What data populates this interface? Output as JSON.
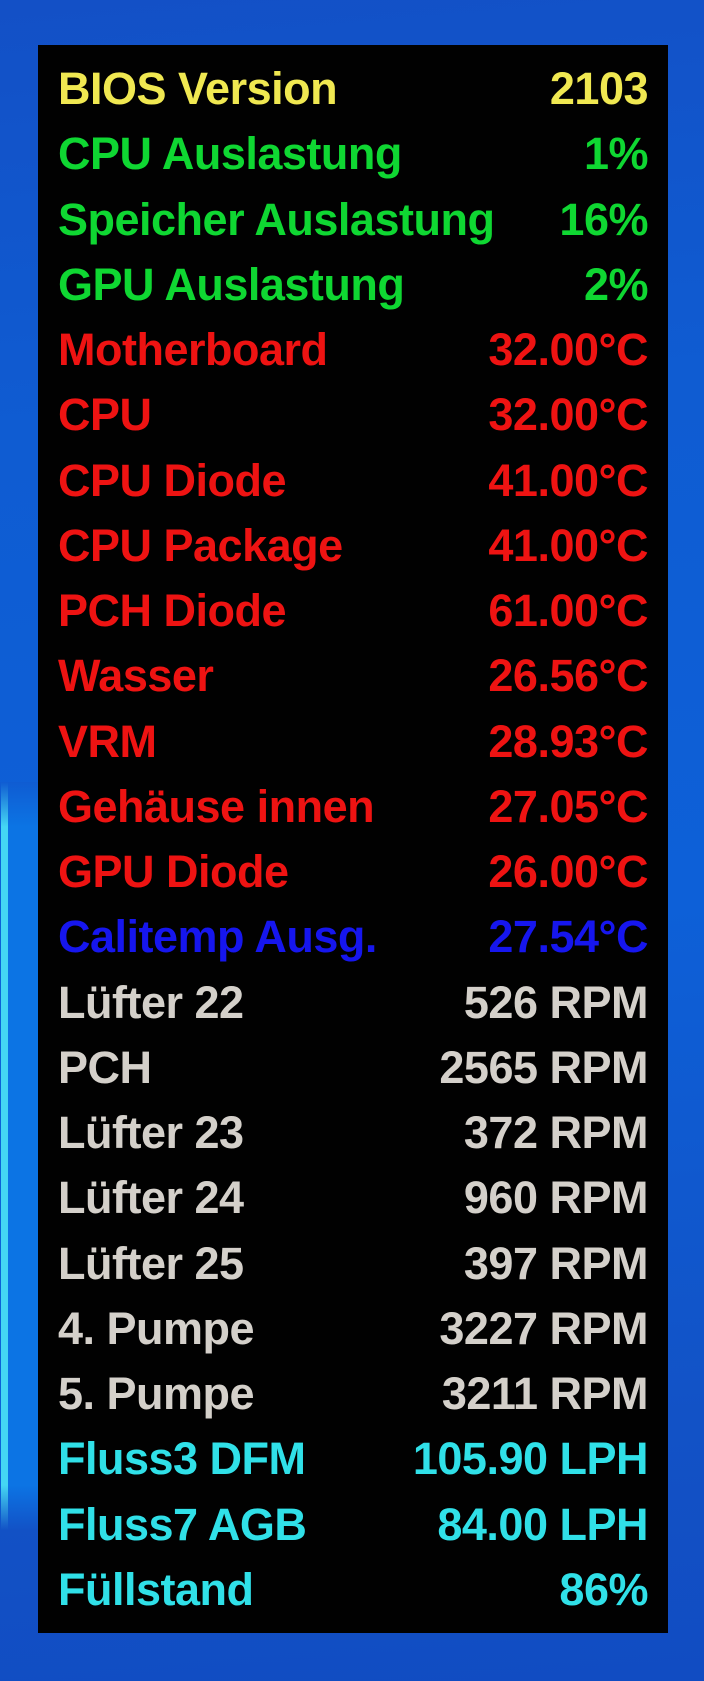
{
  "colors": {
    "yellow": "#f0e851",
    "green": "#0fd732",
    "red": "#ee1312",
    "blue": "#1616ee",
    "gray": "#d4d0ca",
    "cyan": "#30e0e8",
    "panel_background": "#010101",
    "desktop_blue": "#0f5cd2",
    "window_edge_highlight": "#45d6f4"
  },
  "panel": {
    "rows": [
      {
        "label": "BIOS Version",
        "value": "2103",
        "color": "yellow"
      },
      {
        "label": "CPU Auslastung",
        "value": "1%",
        "color": "green"
      },
      {
        "label": "Speicher Auslastung",
        "value": "16%",
        "color": "green"
      },
      {
        "label": "GPU Auslastung",
        "value": "2%",
        "color": "green"
      },
      {
        "label": "Motherboard",
        "value": "32.00°C",
        "color": "red"
      },
      {
        "label": "CPU",
        "value": "32.00°C",
        "color": "red"
      },
      {
        "label": "CPU Diode",
        "value": "41.00°C",
        "color": "red"
      },
      {
        "label": "CPU Package",
        "value": "41.00°C",
        "color": "red"
      },
      {
        "label": "PCH Diode",
        "value": "61.00°C",
        "color": "red"
      },
      {
        "label": "Wasser",
        "value": "26.56°C",
        "color": "red"
      },
      {
        "label": "VRM",
        "value": "28.93°C",
        "color": "red"
      },
      {
        "label": "Gehäuse innen",
        "value": "27.05°C",
        "color": "red"
      },
      {
        "label": "GPU Diode",
        "value": "26.00°C",
        "color": "red"
      },
      {
        "label": "Calitemp Ausg.",
        "value": "27.54°C",
        "color": "blue"
      },
      {
        "label": "Lüfter 22",
        "value": "526 RPM",
        "color": "gray"
      },
      {
        "label": "PCH",
        "value": "2565 RPM",
        "color": "gray"
      },
      {
        "label": "Lüfter 23",
        "value": "372 RPM",
        "color": "gray"
      },
      {
        "label": "Lüfter 24",
        "value": "960 RPM",
        "color": "gray"
      },
      {
        "label": "Lüfter 25",
        "value": "397 RPM",
        "color": "gray"
      },
      {
        "label": "4. Pumpe",
        "value": "3227 RPM",
        "color": "gray"
      },
      {
        "label": "5. Pumpe",
        "value": "3211 RPM",
        "color": "gray"
      },
      {
        "label": "Fluss3 DFM",
        "value": "105.90 LPH",
        "color": "cyan"
      },
      {
        "label": "Fluss7 AGB",
        "value": "84.00 LPH",
        "color": "cyan"
      },
      {
        "label": "Füllstand",
        "value": "86%",
        "color": "cyan"
      }
    ]
  }
}
